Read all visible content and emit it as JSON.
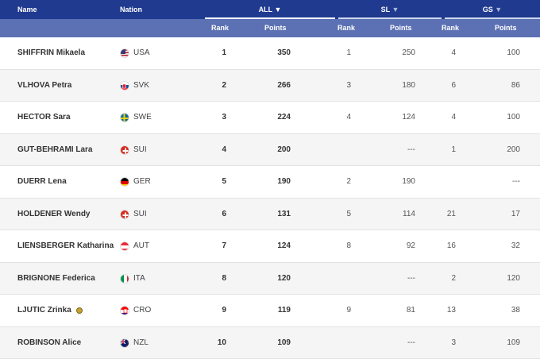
{
  "header": {
    "name": "Name",
    "nation": "Nation",
    "all": "ALL",
    "sl": "SL",
    "gs": "GS",
    "rank": "Rank",
    "points": "Points",
    "sort_arrow": "▼"
  },
  "rows": [
    {
      "name": "SHIFFRIN Mikaela",
      "nation": "USA",
      "flag": "usa",
      "all_rank": "1",
      "all_points": "350",
      "sl_rank": "1",
      "sl_points": "250",
      "gs_rank": "4",
      "gs_points": "100"
    },
    {
      "name": "VLHOVA Petra",
      "nation": "SVK",
      "flag": "svk",
      "all_rank": "2",
      "all_points": "266",
      "sl_rank": "3",
      "sl_points": "180",
      "gs_rank": "6",
      "gs_points": "86"
    },
    {
      "name": "HECTOR Sara",
      "nation": "SWE",
      "flag": "swe",
      "all_rank": "3",
      "all_points": "224",
      "sl_rank": "4",
      "sl_points": "124",
      "gs_rank": "4",
      "gs_points": "100"
    },
    {
      "name": "GUT-BEHRAMI Lara",
      "nation": "SUI",
      "flag": "sui",
      "all_rank": "4",
      "all_points": "200",
      "sl_rank": "",
      "sl_points": "---",
      "gs_rank": "1",
      "gs_points": "200"
    },
    {
      "name": "DUERR Lena",
      "nation": "GER",
      "flag": "ger",
      "all_rank": "5",
      "all_points": "190",
      "sl_rank": "2",
      "sl_points": "190",
      "gs_rank": "",
      "gs_points": "---"
    },
    {
      "name": "HOLDENER Wendy",
      "nation": "SUI",
      "flag": "sui",
      "all_rank": "6",
      "all_points": "131",
      "sl_rank": "5",
      "sl_points": "114",
      "gs_rank": "21",
      "gs_points": "17"
    },
    {
      "name": "LIENSBERGER Katharina",
      "nation": "AUT",
      "flag": "aut",
      "all_rank": "7",
      "all_points": "124",
      "sl_rank": "8",
      "sl_points": "92",
      "gs_rank": "16",
      "gs_points": "32"
    },
    {
      "name": "BRIGNONE Federica",
      "nation": "ITA",
      "flag": "ita",
      "all_rank": "8",
      "all_points": "120",
      "sl_rank": "",
      "sl_points": "---",
      "gs_rank": "2",
      "gs_points": "120"
    },
    {
      "name": "LJUTIC Zrinka",
      "nation": "CRO",
      "flag": "cro",
      "medal": true,
      "all_rank": "9",
      "all_points": "119",
      "sl_rank": "9",
      "sl_points": "81",
      "gs_rank": "13",
      "gs_points": "38"
    },
    {
      "name": "ROBINSON Alice",
      "nation": "NZL",
      "flag": "nzl",
      "all_rank": "10",
      "all_points": "109",
      "sl_rank": "",
      "sl_points": "---",
      "gs_rank": "3",
      "gs_points": "109"
    }
  ]
}
